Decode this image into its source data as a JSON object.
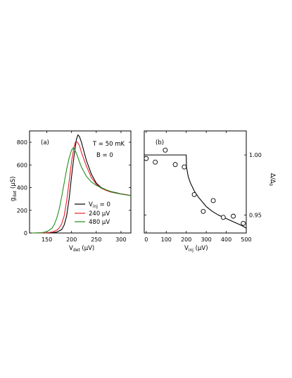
{
  "chart_data": [
    {
      "type": "line",
      "panel_label": "(a)",
      "annotations": [
        "T = 50 mK",
        "B = 0"
      ],
      "xlabel": {
        "main": "V",
        "sub": "det",
        "unit": " (µV)"
      },
      "ylabel": {
        "main": "g",
        "sub": "det",
        "unit": " (µS)"
      },
      "xlim": [
        115,
        320
      ],
      "ylim": [
        0,
        900
      ],
      "xticks": [
        150,
        200,
        250,
        300
      ],
      "xtick_labels": [
        "150",
        "200",
        "250",
        "300"
      ],
      "yticks": [
        0,
        200,
        400,
        600,
        800
      ],
      "ytick_labels": [
        "0",
        "200",
        "400",
        "600",
        "800"
      ],
      "legend_position": "center-right",
      "legend_title": {
        "main": "V",
        "sub": "inj",
        "suffix": " = 0"
      },
      "series": [
        {
          "name": "V_inj = 0",
          "legend_label": "",
          "color": "#000000",
          "x": [
            120,
            150,
            160,
            170,
            180,
            185,
            190,
            195,
            200,
            205,
            210,
            213,
            216,
            220,
            225,
            230,
            240,
            250,
            260,
            270,
            280,
            290,
            300,
            310,
            320
          ],
          "y": [
            0,
            0,
            2,
            8,
            30,
            70,
            150,
            300,
            500,
            680,
            830,
            865,
            850,
            800,
            720,
            640,
            520,
            440,
            400,
            380,
            365,
            355,
            345,
            338,
            330
          ]
        },
        {
          "name": "240 µV",
          "legend_label": "240 µV",
          "color": "#e8202a",
          "x": [
            120,
            150,
            160,
            170,
            175,
            180,
            185,
            190,
            195,
            200,
            205,
            208,
            212,
            216,
            220,
            230,
            240,
            250,
            260,
            270,
            280,
            290,
            300,
            310,
            320
          ],
          "y": [
            0,
            2,
            8,
            25,
            45,
            80,
            150,
            280,
            450,
            630,
            760,
            805,
            800,
            770,
            710,
            590,
            490,
            430,
            395,
            375,
            360,
            352,
            345,
            338,
            330
          ]
        },
        {
          "name": "480 µV",
          "legend_label": "480 µV",
          "color": "#1f8f1f",
          "x": [
            120,
            140,
            150,
            160,
            165,
            170,
            175,
            180,
            185,
            190,
            195,
            200,
            203,
            206,
            210,
            215,
            220,
            230,
            240,
            250,
            260,
            270,
            280,
            290,
            300,
            310,
            320
          ],
          "y": [
            0,
            3,
            12,
            40,
            75,
            130,
            210,
            320,
            440,
            560,
            660,
            730,
            750,
            740,
            700,
            640,
            580,
            500,
            450,
            420,
            398,
            380,
            365,
            352,
            343,
            336,
            330
          ]
        }
      ]
    },
    {
      "type": "scatter",
      "panel_label": "(b)",
      "xlabel": {
        "main": "V",
        "sub": "inj",
        "unit": " (µV)"
      },
      "ylabel": {
        "main": "Δ/Δ",
        "sub": "0",
        "unit": ""
      },
      "xlim": [
        -10,
        500
      ],
      "ylim": [
        0.935,
        1.02
      ],
      "xticks": [
        0,
        100,
        200,
        300,
        400,
        500
      ],
      "xtick_labels": [
        "0",
        "100",
        "200",
        "300",
        "400",
        "500"
      ],
      "yticks": [
        0.95,
        1.0
      ],
      "ytick_labels": [
        "0.95",
        "1.00"
      ],
      "y_axis_side": "right",
      "points": {
        "x": [
          0,
          45,
          95,
          145,
          190,
          240,
          285,
          335,
          385,
          435,
          485
        ],
        "y": [
          0.997,
          0.994,
          1.004,
          0.992,
          0.99,
          0.967,
          0.953,
          0.962,
          0.948,
          0.949,
          0.943
        ]
      },
      "fit": {
        "x": [
          -10,
          195,
          200,
          201,
          210,
          220,
          240,
          260,
          280,
          300,
          330,
          360,
          400,
          440,
          480,
          500
        ],
        "y": [
          1.0,
          1.0,
          1.0,
          0.99,
          0.982,
          0.977,
          0.97,
          0.965,
          0.961,
          0.957,
          0.953,
          0.95,
          0.947,
          0.944,
          0.941,
          0.939
        ]
      }
    }
  ]
}
